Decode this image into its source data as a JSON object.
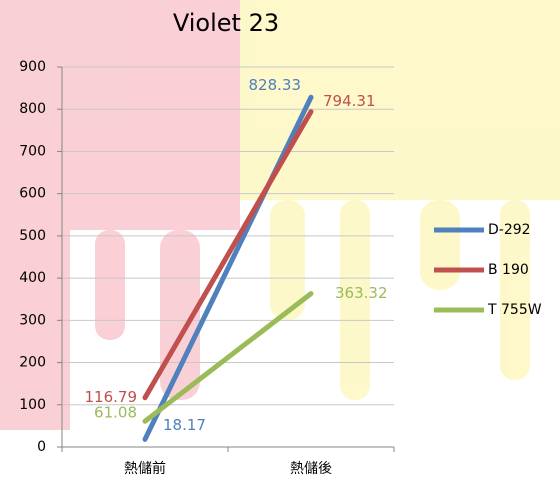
{
  "chart_data": {
    "type": "line",
    "title": "Violet 23",
    "categories": [
      "熱儲前",
      "熱儲後"
    ],
    "series": [
      {
        "name": "D-292",
        "color": "#4f81bd",
        "values": [
          18.17,
          828.33
        ]
      },
      {
        "name": "B 190",
        "color": "#c0504d",
        "values": [
          116.79,
          794.31
        ]
      },
      {
        "name": "T 755W",
        "color": "#9bbb59",
        "values": [
          61.08,
          363.32
        ]
      }
    ],
    "ylim": [
      0,
      900
    ],
    "yticks": [
      0,
      100,
      200,
      300,
      400,
      500,
      600,
      700,
      800,
      900
    ],
    "grid": true,
    "legend": "right"
  }
}
